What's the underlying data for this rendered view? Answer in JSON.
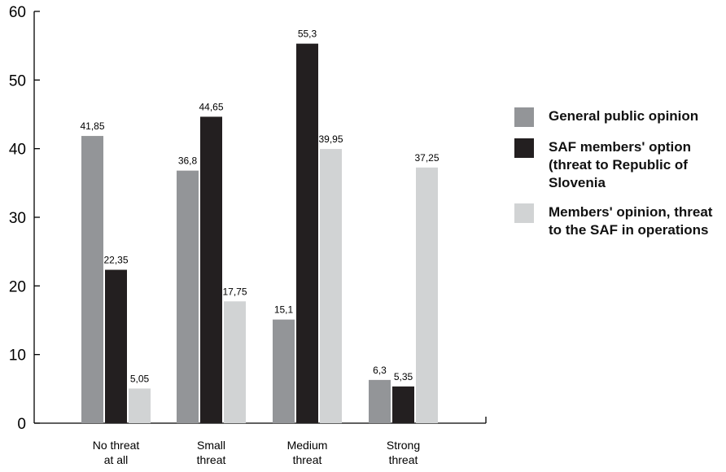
{
  "chart_data": {
    "type": "bar",
    "categories": [
      [
        "No threat",
        "at all"
      ],
      [
        "Small",
        "threat"
      ],
      [
        "Medium",
        "threat"
      ],
      [
        "Strong",
        "threat"
      ]
    ],
    "series": [
      {
        "name": "General public opinion",
        "color": "#939598",
        "values": [
          41.85,
          36.8,
          15.1,
          6.3
        ],
        "labels": [
          "41,85",
          "36,8",
          "15,1",
          "6,3"
        ]
      },
      {
        "name": "SAF members' option (threat to Republic of Slovenia",
        "color": "#231f20",
        "values": [
          22.35,
          44.65,
          55.3,
          5.35
        ],
        "labels": [
          "22,35",
          "44,65",
          "55,3",
          "5,35"
        ]
      },
      {
        "name": "Members' opinion, threat to the SAF in operations",
        "color": "#d1d3d4",
        "values": [
          5.05,
          17.75,
          39.95,
          37.25
        ],
        "labels": [
          "5,05",
          "17,75",
          "39,95",
          "37,25"
        ]
      }
    ],
    "yticks": [
      "0",
      "10",
      "20",
      "30",
      "40",
      "50",
      "60"
    ],
    "ylim": [
      0,
      60
    ],
    "legend_position": "right",
    "grid": false
  }
}
